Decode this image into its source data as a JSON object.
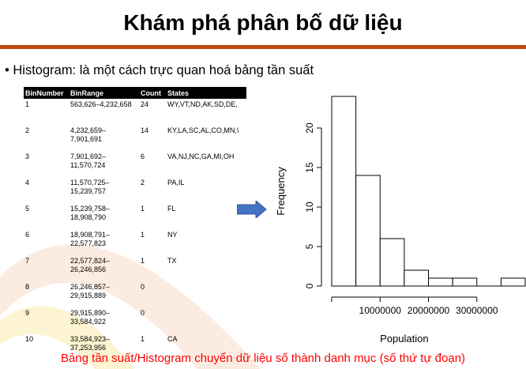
{
  "title": "Khám phá phân bố dữ liệu",
  "bullet": "Histogram: là một cách trực quan hoá bảng tần suất",
  "table": {
    "headers": [
      "BinNumber",
      "BinRange",
      "Count",
      "States"
    ],
    "rows": [
      {
        "bin": "1",
        "range": "563,626–4,232,658",
        "count": "24",
        "states": "WY,VT,ND,AK,SD,DE,"
      },
      {
        "bin": "2",
        "range": "4,232,659– 7,901,691",
        "count": "14",
        "states": "KY,LA,SC,AL,CO,MN,\\"
      },
      {
        "bin": "3",
        "range": "7,901,692– 11,570,724",
        "count": "6",
        "states": "VA,NJ,NC,GA,MI,OH"
      },
      {
        "bin": "4",
        "range": "11,570,725– 15,239,757",
        "count": "2",
        "states": "PA,IL"
      },
      {
        "bin": "5",
        "range": "15,239,758– 18,908,790",
        "count": "1",
        "states": "FL"
      },
      {
        "bin": "6",
        "range": "18,908,791– 22,577,823",
        "count": "1",
        "states": "NY"
      },
      {
        "bin": "7",
        "range": "22,577,824– 26,246,856",
        "count": "1",
        "states": "TX"
      },
      {
        "bin": "8",
        "range": "26,246,857– 29,915,889",
        "count": "0",
        "states": ""
      },
      {
        "bin": "9",
        "range": "29,915,890– 33,584,922",
        "count": "0",
        "states": ""
      },
      {
        "bin": "10",
        "range": "33,584,923– 37,253,956",
        "count": "1",
        "states": "CA"
      }
    ]
  },
  "arrow_color": "#4472c4",
  "chart_data": {
    "type": "bar",
    "bins": [
      {
        "start": 0,
        "end": 5000000,
        "count": 24
      },
      {
        "start": 5000000,
        "end": 10000000,
        "count": 14
      },
      {
        "start": 10000000,
        "end": 15000000,
        "count": 6
      },
      {
        "start": 15000000,
        "end": 20000000,
        "count": 2
      },
      {
        "start": 20000000,
        "end": 25000000,
        "count": 1
      },
      {
        "start": 25000000,
        "end": 30000000,
        "count": 1
      },
      {
        "start": 30000000,
        "end": 35000000,
        "count": 0
      },
      {
        "start": 35000000,
        "end": 40000000,
        "count": 1
      }
    ],
    "xlabel": "Population",
    "ylabel": "Frequency",
    "xticks": [
      "10000000",
      "20000000",
      "30000000"
    ],
    "xtick_values": [
      10000000,
      20000000,
      30000000
    ],
    "yticks": [
      "0",
      "5",
      "10",
      "15",
      "20"
    ],
    "ytick_values": [
      0,
      5,
      10,
      15,
      20
    ],
    "xlim": [
      0,
      40000000
    ],
    "ylim": [
      0,
      24
    ]
  },
  "caption": "Bảng tần suất/Histogram chuyển dữ liệu số thành danh mục (số thứ tự đoạn)"
}
